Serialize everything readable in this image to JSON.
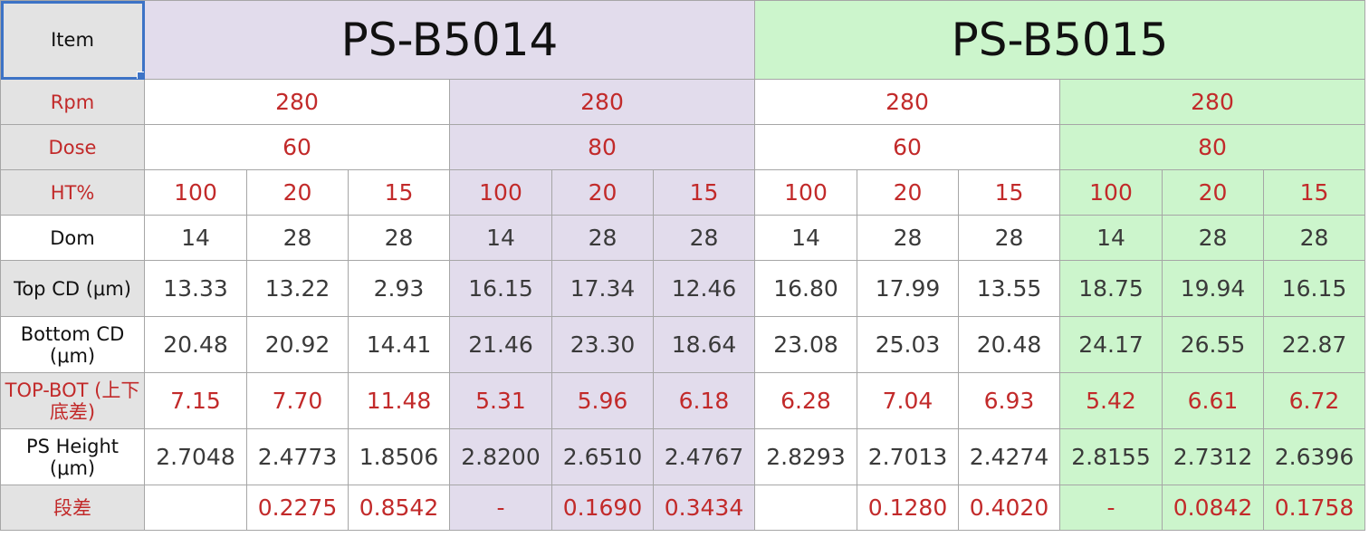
{
  "header": {
    "item_label": "Item",
    "title_a": "PS-B5014",
    "title_b": "PS-B5015"
  },
  "labels": {
    "rpm": "Rpm",
    "dose": "Dose",
    "ht": "HT%",
    "dom": "Dom",
    "top_cd": "Top CD (μm)",
    "bottom_cd": "Bottom CD (μm)",
    "top_bot": "TOP-BOT (上下底差)",
    "ps_height": "PS Height (μm)",
    "step": "段差"
  },
  "rpm": [
    "280",
    "280",
    "280",
    "280"
  ],
  "dose": [
    "60",
    "80",
    "60",
    "80"
  ],
  "ht": [
    "100",
    "20",
    "15",
    "100",
    "20",
    "15",
    "100",
    "20",
    "15",
    "100",
    "20",
    "15"
  ],
  "dom": [
    "14",
    "28",
    "28",
    "14",
    "28",
    "28",
    "14",
    "28",
    "28",
    "14",
    "28",
    "28"
  ],
  "top_cd": [
    "13.33",
    "13.22",
    "2.93",
    "16.15",
    "17.34",
    "12.46",
    "16.80",
    "17.99",
    "13.55",
    "18.75",
    "19.94",
    "16.15"
  ],
  "bottom_cd": [
    "20.48",
    "20.92",
    "14.41",
    "21.46",
    "23.30",
    "18.64",
    "23.08",
    "25.03",
    "20.48",
    "24.17",
    "26.55",
    "22.87"
  ],
  "top_bot": [
    "7.15",
    "7.70",
    "11.48",
    "5.31",
    "5.96",
    "6.18",
    "6.28",
    "7.04",
    "6.93",
    "5.42",
    "6.61",
    "6.72"
  ],
  "ps_height": [
    "2.7048",
    "2.4773",
    "1.8506",
    "2.8200",
    "2.6510",
    "2.4767",
    "2.8293",
    "2.7013",
    "2.4274",
    "2.8155",
    "2.7312",
    "2.6396"
  ],
  "step": [
    "",
    "0.2275",
    "0.8542",
    "-",
    "0.1690",
    "0.3434",
    "",
    "0.1280",
    "0.4020",
    "-",
    "0.0842",
    "0.1758"
  ]
}
